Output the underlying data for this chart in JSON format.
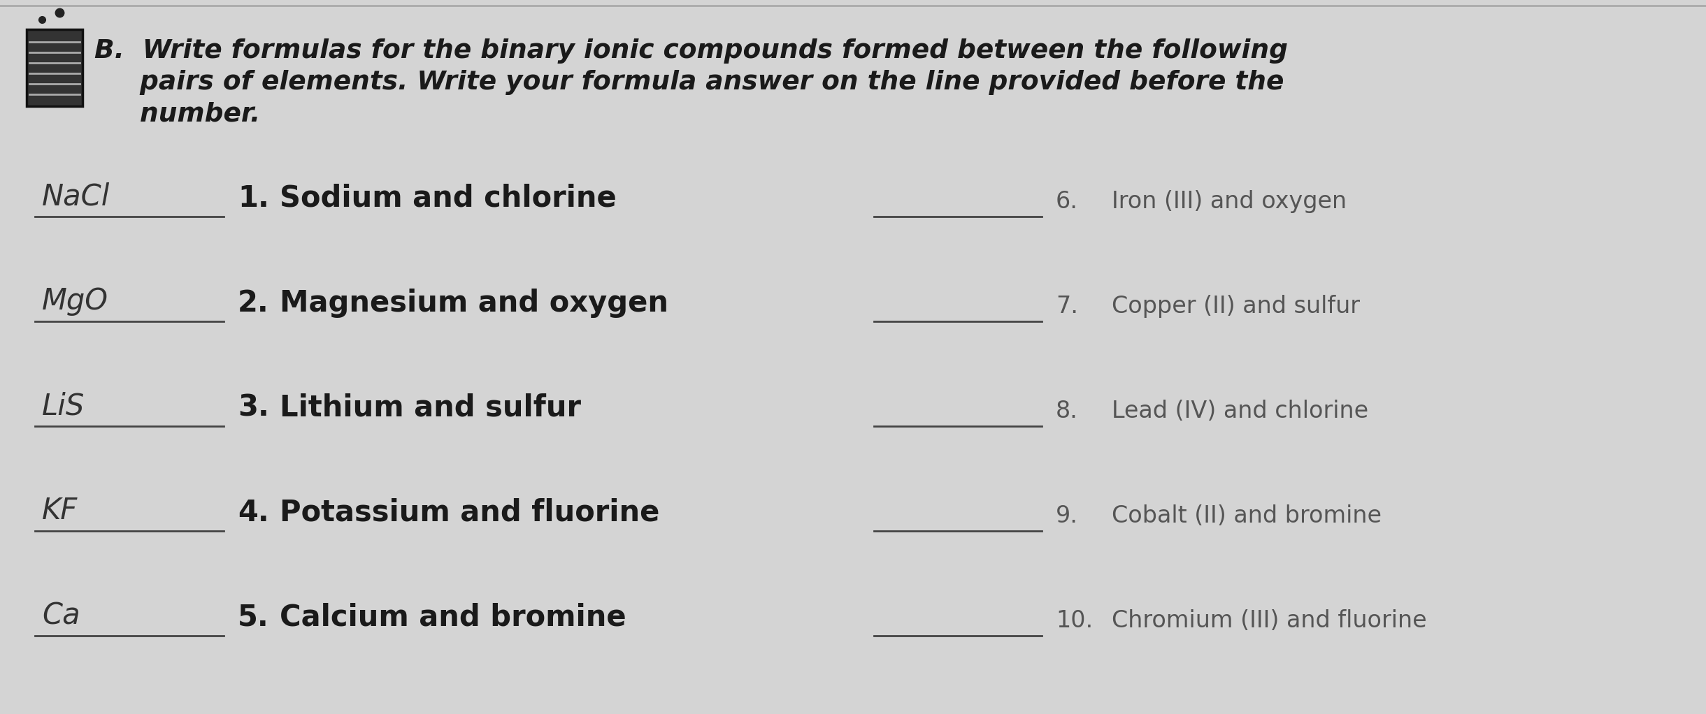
{
  "bg_color": "#d4d4d4",
  "title_line1": "B.  Write formulas for the binary ionic compounds formed between the following",
  "title_line2": "     pairs of elements. Write your formula answer on the line provided before the",
  "title_line3": "     number.",
  "left_items": [
    {
      "number": "1.",
      "text": "Sodium and chlorine",
      "answer": "NaCl"
    },
    {
      "number": "2.",
      "text": "Magnesium and oxygen",
      "answer": "MgO"
    },
    {
      "number": "3.",
      "text": "Lithium and sulfur",
      "answer": "LiS"
    },
    {
      "number": "4.",
      "text": "Potassium and fluorine",
      "answer": "KF"
    },
    {
      "number": "5.",
      "text": "Calcium and bromine",
      "answer": "Ca"
    }
  ],
  "right_items": [
    {
      "number": "6.",
      "text": "Iron (III) and oxygen"
    },
    {
      "number": "7.",
      "text": "Copper (II) and sulfur"
    },
    {
      "number": "8.",
      "text": "Lead (IV) and chlorine"
    },
    {
      "number": "9.",
      "text": "Cobalt (II) and bromine"
    },
    {
      "number": "10.",
      "text": "Chromium (III) and fluorine"
    }
  ],
  "top_border_color": "#aaaaaa",
  "line_color": "#444444",
  "text_color": "#1a1a1a",
  "answer_color": "#333333",
  "right_text_color": "#555555"
}
